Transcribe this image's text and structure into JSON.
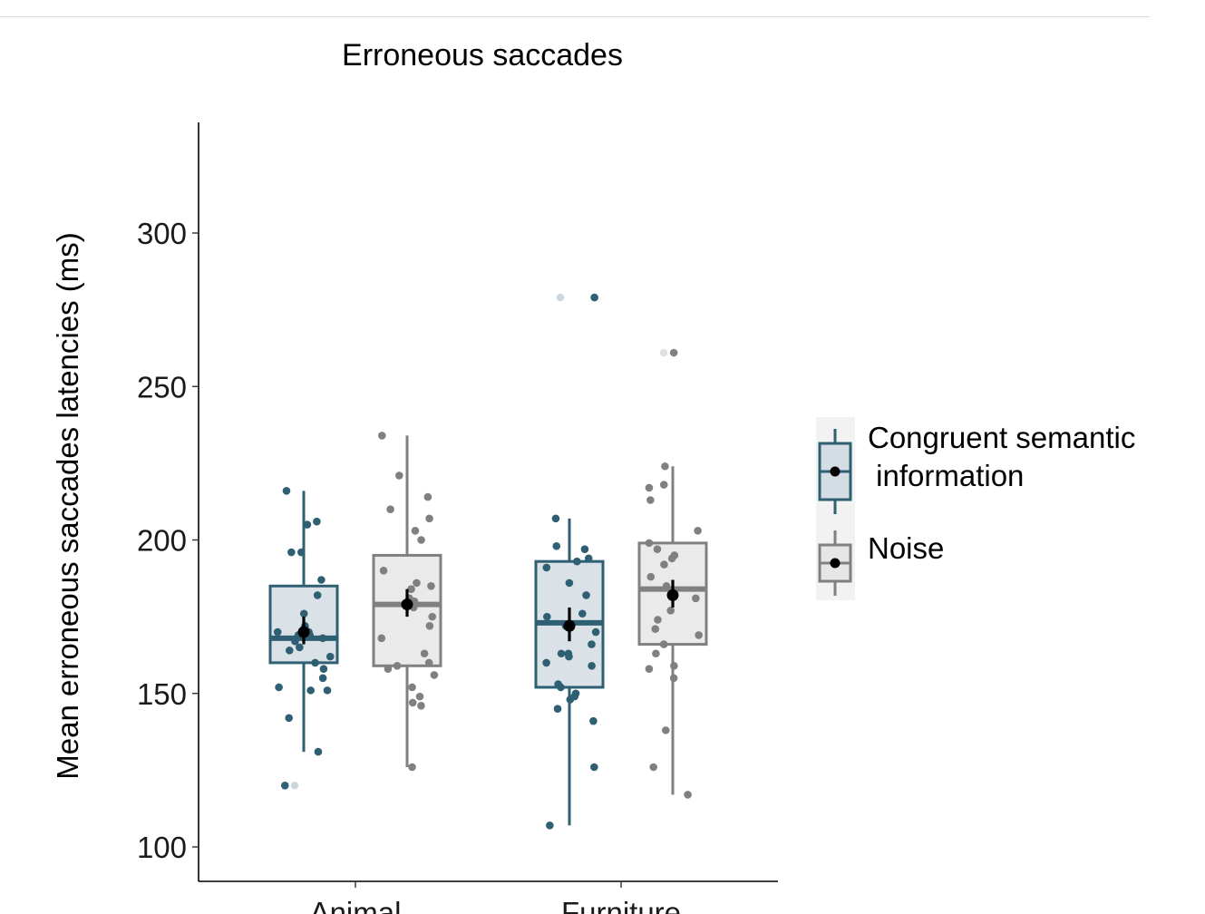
{
  "chart_data": {
    "type": "box",
    "title": "Erroneous saccades",
    "xlabel": "",
    "ylabel": "Mean erroneous saccades latencies (ms)",
    "categories": [
      "Animal",
      "Furniture"
    ],
    "ylim": [
      87,
      337
    ],
    "yticks": [
      100,
      150,
      200,
      250,
      300
    ],
    "grid": false,
    "legend_position": "right",
    "series": [
      {
        "name": "Congruent semantic\n information",
        "color": "#2e5f73",
        "fill": "#d4dde3",
        "boxes": [
          {
            "category": "Animal",
            "whisker_low": 131,
            "q1": 160,
            "median": 168,
            "q3": 185,
            "whisker_high": 216,
            "mean": 170,
            "ci_low": 166,
            "ci_high": 175,
            "outliers": [
              120
            ],
            "points": [
              216,
              206,
              205,
              196,
              196,
              187,
              182,
              176,
              172,
              171,
              170,
              170,
              169,
              169,
              168,
              167,
              165,
              164,
              162,
              160,
              158,
              155,
              152,
              151,
              151,
              142,
              131,
              120
            ]
          },
          {
            "category": "Furniture",
            "whisker_low": 107,
            "q1": 152,
            "median": 173,
            "q3": 193,
            "whisker_high": 207,
            "mean": 172,
            "ci_low": 167,
            "ci_high": 178,
            "outliers": [
              279
            ],
            "points": [
              279,
              207,
              198,
              197,
              194,
              193,
              191,
              186,
              182,
              176,
              175,
              172,
              170,
              166,
              163,
              163,
              162,
              160,
              159,
              153,
              152,
              150,
              149,
              148,
              145,
              141,
              126,
              107
            ]
          }
        ]
      },
      {
        "name": "Noise",
        "color": "#808080",
        "fill": "#e6e6e6",
        "boxes": [
          {
            "category": "Animal",
            "whisker_low": 126,
            "q1": 159,
            "median": 179,
            "q3": 195,
            "whisker_high": 234,
            "mean": 179,
            "ci_low": 175,
            "ci_high": 184,
            "outliers": [],
            "points": [
              234,
              221,
              214,
              210,
              207,
              203,
              200,
              190,
              186,
              185,
              184,
              181,
              180,
              178,
              175,
              172,
              168,
              163,
              160,
              159,
              158,
              156,
              152,
              149,
              147,
              146,
              126
            ]
          },
          {
            "category": "Furniture",
            "whisker_low": 117,
            "q1": 166,
            "median": 184,
            "q3": 199,
            "whisker_high": 224,
            "mean": 182,
            "ci_low": 178,
            "ci_high": 187,
            "outliers": [
              261
            ],
            "points": [
              261,
              224,
              218,
              217,
              213,
              203,
              199,
              197,
              195,
              194,
              192,
              188,
              185,
              181,
              177,
              174,
              171,
              169,
              166,
              163,
              159,
              158,
              155,
              138,
              126,
              117
            ]
          }
        ]
      }
    ]
  }
}
